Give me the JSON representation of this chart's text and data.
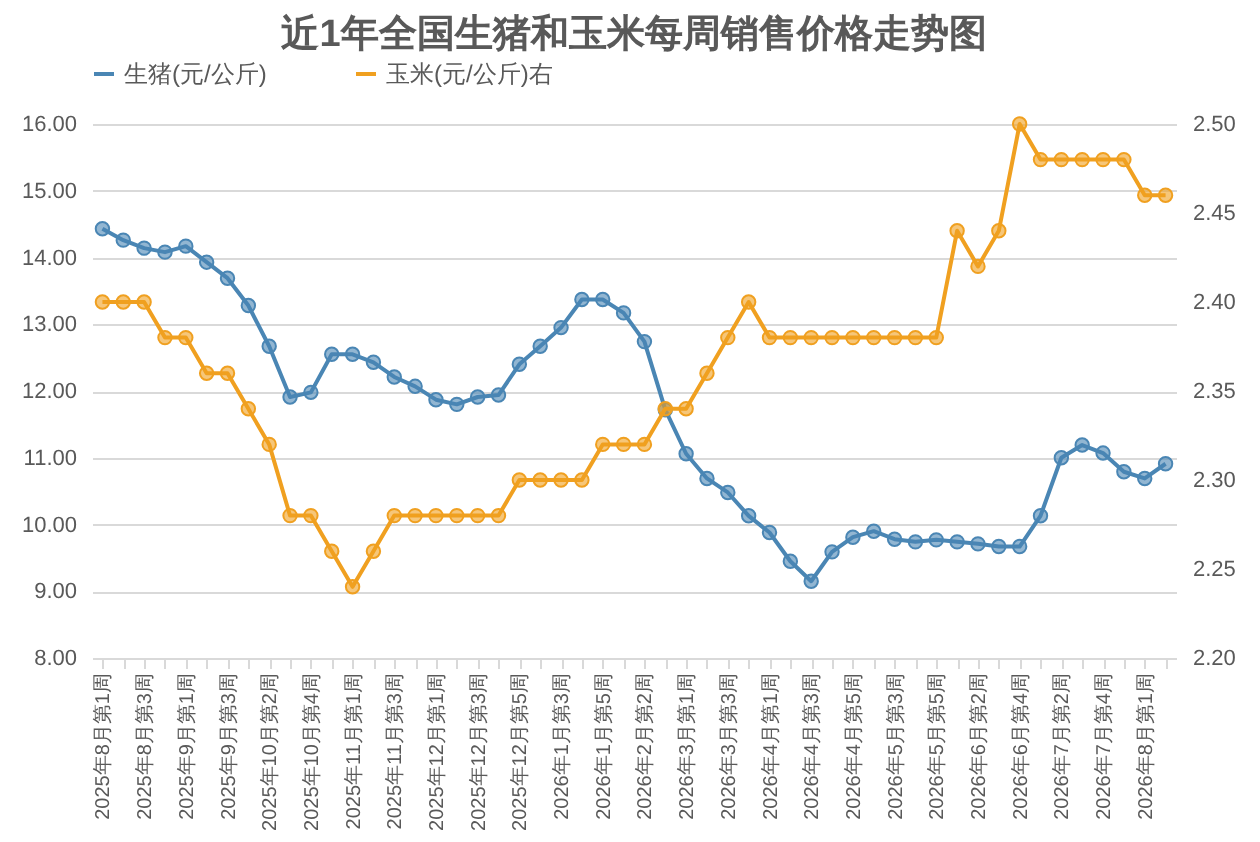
{
  "chart_data": {
    "type": "line",
    "title": "近1年全国生猪和玉米每周销售价格走势图",
    "categories": [
      "2025年8月第1周",
      null,
      "2025年8月第3周",
      null,
      "2025年9月第1周",
      null,
      "2025年9月第3周",
      null,
      "2025年10月第2周",
      null,
      "2025年10月第4周",
      null,
      "2025年11月第1周",
      null,
      "2025年11月第3周",
      null,
      "2025年12月第1周",
      null,
      "2025年12月第3周",
      null,
      "2025年12月第5周",
      null,
      "2026年1月第3周",
      null,
      "2026年1月第5周",
      null,
      "2026年2月第2周",
      null,
      "2026年3月第1周",
      null,
      "2026年3月第3周",
      null,
      "2026年4月第1周",
      null,
      "2026年4月第3周",
      null,
      "2026年4月第5周",
      null,
      "2026年5月第3周",
      null,
      "2026年5月第5周",
      null,
      "2026年6月第2周",
      null,
      "2026年6月第4周",
      null,
      "2026年7月第2周",
      null,
      "2026年7月第4周",
      null,
      "2026年8月第1周",
      null
    ],
    "series": [
      {
        "name": "生猪(元/公斤)",
        "color": "#4a86b4",
        "values": [
          14.43,
          14.26,
          14.14,
          14.08,
          14.17,
          13.93,
          13.69,
          13.28,
          12.67,
          11.91,
          11.98,
          12.55,
          12.55,
          12.43,
          12.21,
          12.07,
          11.87,
          11.8,
          11.91,
          11.94,
          12.4,
          12.67,
          12.95,
          13.37,
          13.37,
          13.17,
          12.74,
          11.72,
          11.06,
          10.69,
          10.48,
          10.13,
          9.88,
          9.45,
          9.15,
          9.59,
          9.81,
          9.9,
          9.78,
          9.74,
          9.77,
          9.74,
          9.71,
          9.67,
          9.67,
          10.13,
          11.0,
          11.19,
          11.07,
          10.79,
          10.69,
          10.91
        ]
      },
      {
        "name": "玉米(元/公斤)右",
        "color": "#f0a020",
        "axis": "y2",
        "values": [
          2.4,
          2.4,
          2.4,
          2.38,
          2.38,
          2.36,
          2.36,
          2.34,
          2.32,
          2.28,
          2.28,
          2.26,
          2.24,
          2.26,
          2.28,
          2.28,
          2.28,
          2.28,
          2.28,
          2.28,
          2.3,
          2.3,
          2.3,
          2.3,
          2.32,
          2.32,
          2.32,
          2.34,
          2.34,
          2.36,
          2.38,
          2.4,
          2.38,
          2.38,
          2.38,
          2.38,
          2.38,
          2.38,
          2.38,
          2.38,
          2.38,
          2.44,
          2.42,
          2.44,
          2.5,
          2.48,
          2.48,
          2.48,
          2.48,
          2.48,
          2.46,
          2.46
        ]
      }
    ],
    "ylim": [
      8,
      16
    ],
    "yticks": [
      {
        "value": 8,
        "label": "8.00"
      },
      {
        "value": 9,
        "label": "9.00"
      },
      {
        "value": 10,
        "label": "10.00"
      },
      {
        "value": 11,
        "label": "11.00"
      },
      {
        "value": 12,
        "label": "12.00"
      },
      {
        "value": 13,
        "label": "13.00"
      },
      {
        "value": 14,
        "label": "14.00"
      },
      {
        "value": 15,
        "label": "15.00"
      },
      {
        "value": 16,
        "label": "16.00"
      }
    ],
    "y2lim": [
      2.2,
      2.5
    ],
    "y2ticks": [
      {
        "value": 2.2,
        "label": "2.20"
      },
      {
        "value": 2.25,
        "label": "2.25"
      },
      {
        "value": 2.3,
        "label": "2.30"
      },
      {
        "value": 2.35,
        "label": "2.35"
      },
      {
        "value": 2.4,
        "label": "2.40"
      },
      {
        "value": 2.45,
        "label": "2.45"
      },
      {
        "value": 2.5,
        "label": "2.50"
      }
    ],
    "grid": "y",
    "legend": "top",
    "marker": "circle"
  }
}
